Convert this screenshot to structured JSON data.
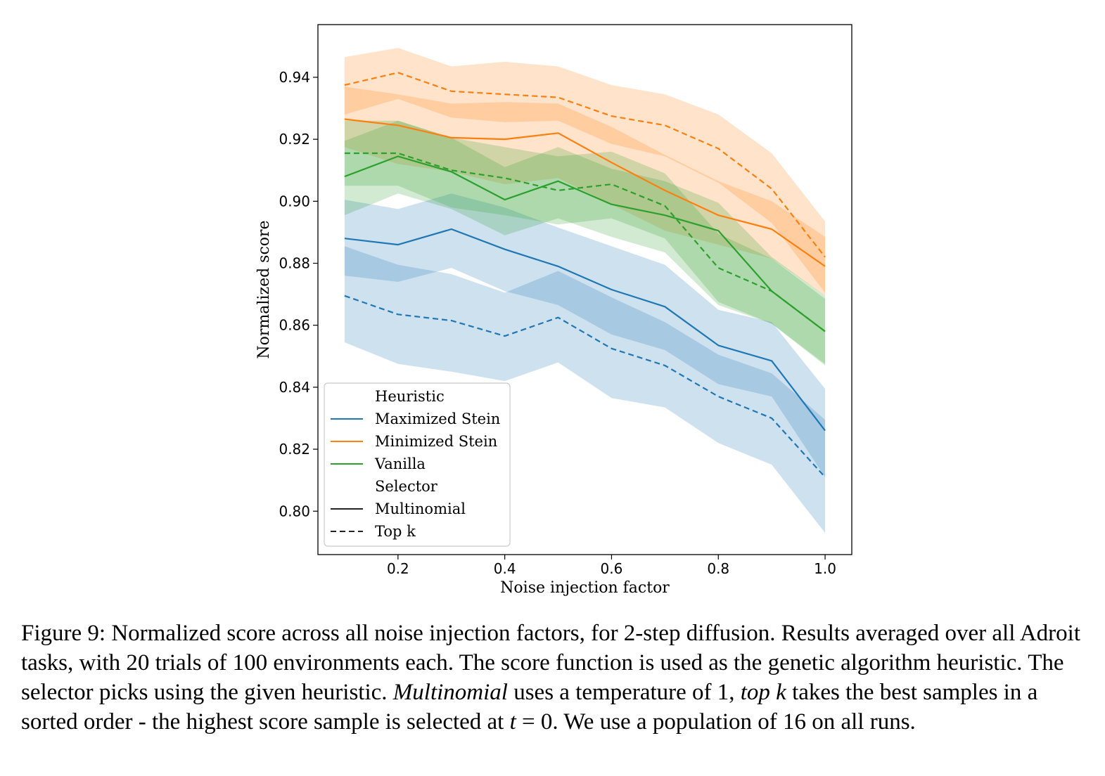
{
  "chart_data": {
    "type": "line",
    "title": "",
    "xlabel": "Noise injection factor",
    "ylabel": "Normalized score",
    "xlim": [
      0.05,
      1.05
    ],
    "ylim": [
      0.786,
      0.957
    ],
    "xticks": [
      0.2,
      0.4,
      0.6,
      0.8,
      1.0
    ],
    "xtick_labels": [
      "0.2",
      "0.4",
      "0.6",
      "0.8",
      "1.0"
    ],
    "yticks": [
      0.8,
      0.82,
      0.84,
      0.86,
      0.88,
      0.9,
      0.92,
      0.94
    ],
    "ytick_labels": [
      "0.80",
      "0.82",
      "0.84",
      "0.86",
      "0.88",
      "0.90",
      "0.92",
      "0.94"
    ],
    "x": [
      0.1,
      0.2,
      0.3,
      0.4,
      0.5,
      0.6,
      0.7,
      0.8,
      0.9,
      1.0
    ],
    "series": [
      {
        "name": "Maximized Stein / Multinomial",
        "heuristic": "Maximized Stein",
        "selector": "Multinomial",
        "color": "#1f77b4",
        "dash": "solid",
        "values": [
          0.888,
          0.886,
          0.891,
          0.8845,
          0.879,
          0.8715,
          0.866,
          0.8535,
          0.8485,
          0.826
        ],
        "lower": [
          0.876,
          0.874,
          0.8785,
          0.871,
          0.8665,
          0.857,
          0.852,
          0.841,
          0.837,
          0.811
        ],
        "upper": [
          0.9005,
          0.8975,
          0.9025,
          0.898,
          0.8915,
          0.8855,
          0.8795,
          0.865,
          0.861,
          0.8395
        ]
      },
      {
        "name": "Maximized Stein / Top k",
        "heuristic": "Maximized Stein",
        "selector": "Top k",
        "color": "#1f77b4",
        "dash": "dashed",
        "values": [
          0.8695,
          0.8635,
          0.8615,
          0.8565,
          0.8625,
          0.8525,
          0.847,
          0.837,
          0.83,
          0.811
        ],
        "lower": [
          0.8545,
          0.8475,
          0.845,
          0.842,
          0.848,
          0.8365,
          0.8335,
          0.822,
          0.815,
          0.793
        ],
        "upper": [
          0.8855,
          0.8795,
          0.8765,
          0.8705,
          0.8775,
          0.869,
          0.861,
          0.8505,
          0.8445,
          0.8295
        ]
      },
      {
        "name": "Minimized Stein / Multinomial",
        "heuristic": "Minimized Stein",
        "selector": "Multinomial",
        "color": "#ff7f0e",
        "dash": "solid",
        "values": [
          0.9265,
          0.9245,
          0.9205,
          0.92,
          0.922,
          0.9125,
          0.9035,
          0.8955,
          0.891,
          0.879
        ],
        "lower": [
          0.9175,
          0.912,
          0.9095,
          0.9055,
          0.9075,
          0.899,
          0.8905,
          0.886,
          0.8815,
          0.8695
        ],
        "upper": [
          0.937,
          0.9345,
          0.9315,
          0.932,
          0.9315,
          0.924,
          0.915,
          0.9065,
          0.9,
          0.8885
        ]
      },
      {
        "name": "Minimized Stein / Top k",
        "heuristic": "Minimized Stein",
        "selector": "Top k",
        "color": "#ff7f0e",
        "dash": "dashed",
        "values": [
          0.9375,
          0.9415,
          0.9355,
          0.9345,
          0.9335,
          0.9275,
          0.9245,
          0.917,
          0.904,
          0.882
        ],
        "lower": [
          0.928,
          0.933,
          0.927,
          0.9255,
          0.926,
          0.9185,
          0.9145,
          0.906,
          0.893,
          0.8705
        ],
        "upper": [
          0.9465,
          0.9495,
          0.9435,
          0.945,
          0.9435,
          0.9375,
          0.9345,
          0.928,
          0.9155,
          0.8935
        ]
      },
      {
        "name": "Vanilla / Multinomial",
        "heuristic": "Vanilla",
        "selector": "Multinomial",
        "color": "#2ca02c",
        "dash": "solid",
        "values": [
          0.908,
          0.9145,
          0.9095,
          0.9005,
          0.9065,
          0.899,
          0.8955,
          0.8905,
          0.871,
          0.858
        ],
        "lower": [
          0.8955,
          0.9025,
          0.8975,
          0.889,
          0.8945,
          0.8885,
          0.8835,
          0.8665,
          0.8605,
          0.847
        ],
        "upper": [
          0.9195,
          0.926,
          0.9205,
          0.911,
          0.9175,
          0.9105,
          0.9065,
          0.8995,
          0.882,
          0.8695
        ]
      },
      {
        "name": "Vanilla / Top k",
        "heuristic": "Vanilla",
        "selector": "Top k",
        "color": "#2ca02c",
        "dash": "dashed",
        "values": [
          0.9155,
          0.9155,
          0.91,
          0.9075,
          0.9035,
          0.9055,
          0.8985,
          0.8785,
          0.871,
          0.858
        ],
        "lower": [
          0.905,
          0.905,
          0.898,
          0.8955,
          0.8925,
          0.8945,
          0.888,
          0.8675,
          0.8605,
          0.8475
        ],
        "upper": [
          0.926,
          0.926,
          0.9205,
          0.9175,
          0.9145,
          0.916,
          0.909,
          0.8895,
          0.8815,
          0.8685
        ]
      }
    ],
    "legend": {
      "placement": "lower-left",
      "heuristic_title": "Heuristic",
      "heuristic_entries": [
        {
          "label": "Maximized Stein",
          "color": "#1f77b4"
        },
        {
          "label": "Minimized Stein",
          "color": "#ff7f0e"
        },
        {
          "label": "Vanilla",
          "color": "#2ca02c"
        }
      ],
      "selector_title": "Selector",
      "selector_entries": [
        {
          "label": "Multinomial",
          "dash": "solid"
        },
        {
          "label": "Top k",
          "dash": "dashed"
        }
      ]
    }
  },
  "caption": {
    "label": "Figure 9:",
    "part1": " Normalized score across all noise injection factors, for 2-step diffusion. Results averaged over all Adroit tasks, with 20 trials of 100 environments each. The score function is used as the genetic algorithm heuristic. The selector picks using the given heuristic. ",
    "multinomial": "Multinomial",
    "part2": " uses a temperature of 1, ",
    "topk": "top k",
    "part3": " takes the best samples in a sorted order - the highest score sample is selected at ",
    "t_symbol": "t",
    "part4": " = 0. We use a population of 16 on all runs."
  }
}
